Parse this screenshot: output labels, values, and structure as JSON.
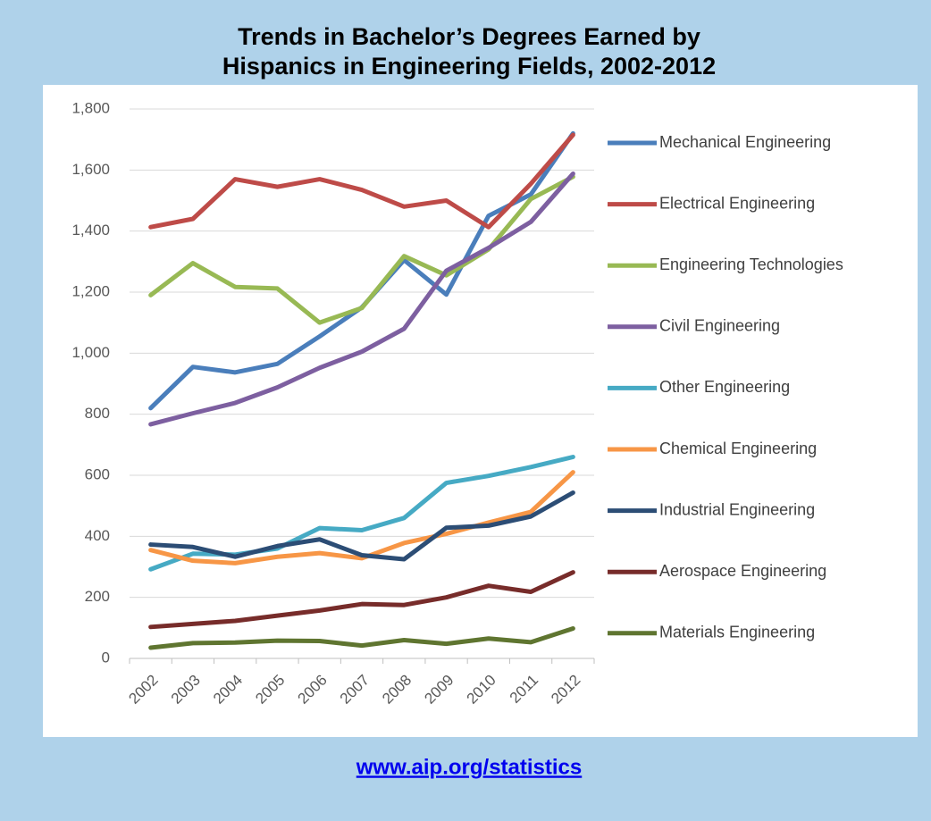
{
  "chart_data": {
    "type": "line",
    "title": [
      "Trends in Bachelor’s Degrees Earned by",
      "Hispanics in Engineering Fields, 2002-2012"
    ],
    "categories": [
      "2002",
      "2003",
      "2004",
      "2005",
      "2006",
      "2007",
      "2008",
      "2009",
      "2010",
      "2011",
      "2012"
    ],
    "series": [
      {
        "name": "Mechanical Engineering",
        "color": "#4a7ebb",
        "values": [
          820,
          955,
          937,
          965,
          1055,
          1150,
          1305,
          1192,
          1450,
          1520,
          1720
        ]
      },
      {
        "name": "Electrical Engineering",
        "color": "#be4b48",
        "values": [
          1413,
          1440,
          1570,
          1545,
          1570,
          1535,
          1480,
          1500,
          1413,
          1555,
          1715
        ]
      },
      {
        "name": "Engineering Technologies",
        "color": "#98b954",
        "values": [
          1190,
          1295,
          1217,
          1212,
          1100,
          1148,
          1318,
          1255,
          1340,
          1505,
          1578
        ]
      },
      {
        "name": "Civil Engineering",
        "color": "#7d5fa0",
        "values": [
          767,
          803,
          837,
          888,
          952,
          1005,
          1080,
          1270,
          1345,
          1430,
          1588
        ]
      },
      {
        "name": "Other Engineering",
        "color": "#46aac4",
        "values": [
          292,
          343,
          340,
          360,
          427,
          420,
          460,
          575,
          598,
          627,
          660
        ]
      },
      {
        "name": "Chemical Engineering",
        "color": "#f79646",
        "values": [
          355,
          320,
          312,
          333,
          345,
          328,
          378,
          408,
          445,
          480,
          610
        ]
      },
      {
        "name": "Industrial Engineering",
        "color": "#2c4d75",
        "values": [
          373,
          365,
          333,
          368,
          390,
          338,
          325,
          428,
          435,
          465,
          543
        ]
      },
      {
        "name": "Aerospace Engineering",
        "color": "#772c2a",
        "values": [
          103,
          113,
          123,
          140,
          157,
          178,
          175,
          200,
          238,
          218,
          282
        ]
      },
      {
        "name": "Materials Engineering",
        "color": "#5f7530",
        "values": [
          35,
          50,
          52,
          58,
          57,
          42,
          60,
          48,
          65,
          53,
          98
        ]
      }
    ],
    "ylim": [
      0,
      1800
    ],
    "yticks": [
      0,
      200,
      400,
      600,
      800,
      {
        "value": 1000,
        "label": "1,000"
      },
      {
        "value": 1200,
        "label": "1,200"
      },
      {
        "value": 1400,
        "label": "1,400"
      },
      {
        "value": 1600,
        "label": "1,600"
      },
      {
        "value": 1800,
        "label": "1,800"
      }
    ],
    "grid": true,
    "legend": "right"
  },
  "footer": {
    "link": "www.aip.org/statistics"
  }
}
